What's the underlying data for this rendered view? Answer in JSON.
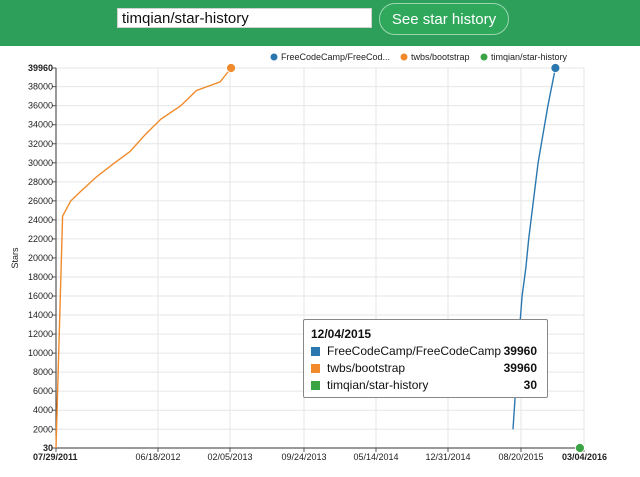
{
  "header": {
    "search_value": "timqian/star-history",
    "button_label": "See star history"
  },
  "tooltip": {
    "date": "12/04/2015",
    "rows": [
      {
        "name": "FreeCodeCamp/FreeCodeCamp",
        "value": "39960",
        "color": "#2a77b0"
      },
      {
        "name": "twbs/bootstrap",
        "value": "39960",
        "color": "#f08a2b"
      },
      {
        "name": "timqian/star-history",
        "value": "30",
        "color": "#3aa343"
      }
    ]
  },
  "chart_data": {
    "type": "line",
    "ylabel": "Stars",
    "ylim": [
      30,
      39960
    ],
    "y_ticks": [
      "30",
      "2000",
      "4000",
      "6000",
      "8000",
      "10000",
      "12000",
      "14000",
      "16000",
      "18000",
      "20000",
      "22000",
      "24000",
      "26000",
      "28000",
      "30000",
      "32000",
      "34000",
      "36000",
      "38000",
      "39960"
    ],
    "x_ticks": [
      "07/29/2011",
      "06/18/2012",
      "02/05/2013",
      "09/24/2013",
      "05/14/2014",
      "12/31/2014",
      "08/20/2015",
      "03/04/2016"
    ],
    "xlim": [
      "2011-07-29",
      "2016-03-04"
    ],
    "grid": true,
    "legend_position": "top-right",
    "series": [
      {
        "name": "FreeCodeCamp/FreeCodeCamp",
        "short_label": "FreeCodeCamp/FreeCod...",
        "color": "#2a77b0",
        "points": [
          [
            "2015-07-22",
            2000
          ],
          [
            "2015-08-13",
            13000
          ],
          [
            "2015-08-20",
            16000
          ],
          [
            "2015-09-01",
            19000
          ],
          [
            "2015-09-10",
            22000
          ],
          [
            "2015-10-10",
            30000
          ],
          [
            "2015-11-10",
            36000
          ],
          [
            "2015-12-04",
            39960
          ]
        ]
      },
      {
        "name": "twbs/bootstrap",
        "short_label": "twbs/bootstrap",
        "color": "#f08a2b",
        "points": [
          [
            "2011-07-29",
            30
          ],
          [
            "2011-08-19",
            24400
          ],
          [
            "2011-09-14",
            26000
          ],
          [
            "2011-10-16",
            27000
          ],
          [
            "2011-12-04",
            28500
          ],
          [
            "2012-01-28",
            29900
          ],
          [
            "2012-03-21",
            31200
          ],
          [
            "2012-05-09",
            33000
          ],
          [
            "2012-06-27",
            34600
          ],
          [
            "2012-08-29",
            36000
          ],
          [
            "2012-10-18",
            37600
          ],
          [
            "2013-01-01",
            38500
          ],
          [
            "2013-02-05",
            39960
          ]
        ]
      },
      {
        "name": "timqian/star-history",
        "short_label": "timqian/star-history",
        "color": "#3aa343",
        "points": [
          [
            "2016-02-20",
            30
          ]
        ]
      }
    ]
  }
}
